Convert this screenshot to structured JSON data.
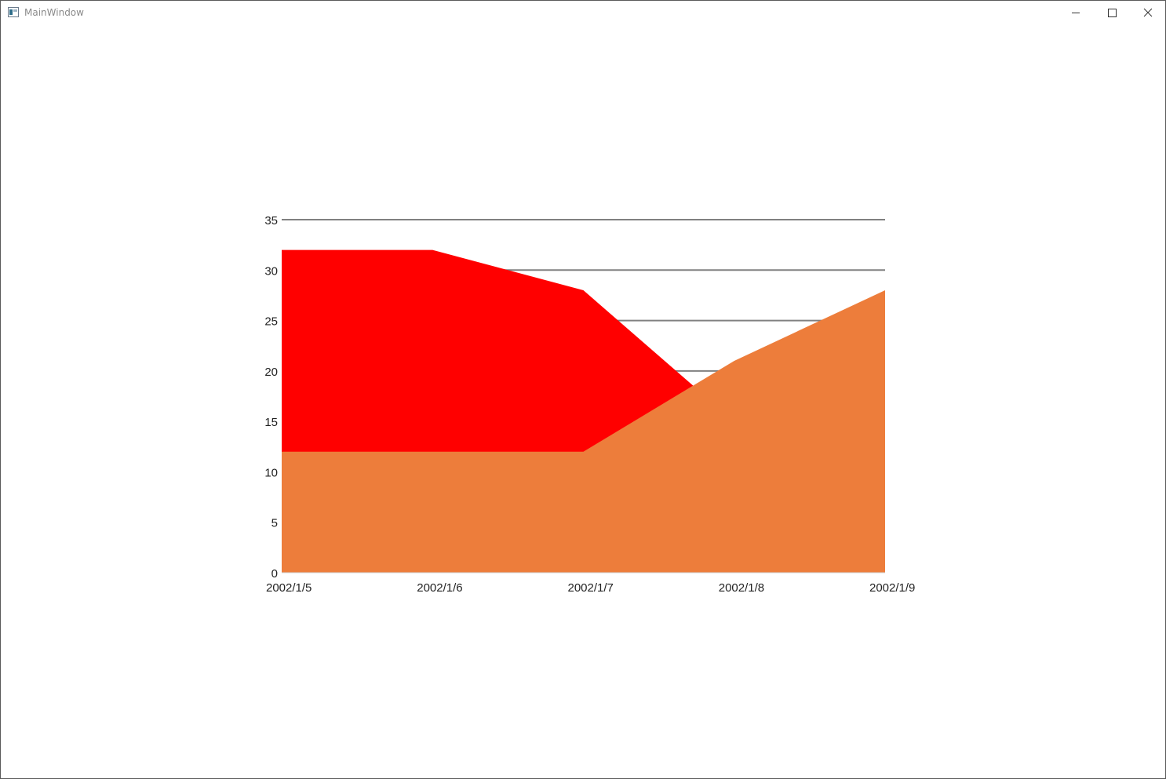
{
  "window": {
    "title": "MainWindow",
    "icon": "window-app-icon",
    "controls": [
      "minimize-icon",
      "maximize-icon",
      "close-icon"
    ]
  },
  "chart_data": {
    "type": "area",
    "categories": [
      "2002/1/5",
      "2002/1/6",
      "2002/1/7",
      "2002/1/8",
      "2002/1/9"
    ],
    "series": [
      {
        "values": [
          32,
          32,
          28,
          15,
          11
        ],
        "color": "#ff0000"
      },
      {
        "values": [
          12,
          12,
          12,
          21,
          28
        ],
        "color": "#ed7d3b"
      }
    ],
    "ylim": [
      0,
      35
    ],
    "yticks": [
      0,
      5,
      10,
      15,
      20,
      25,
      30,
      35
    ],
    "grid": true,
    "gridline_color": "#808080",
    "legend": "none",
    "title": "",
    "xlabel": "",
    "ylabel": ""
  }
}
